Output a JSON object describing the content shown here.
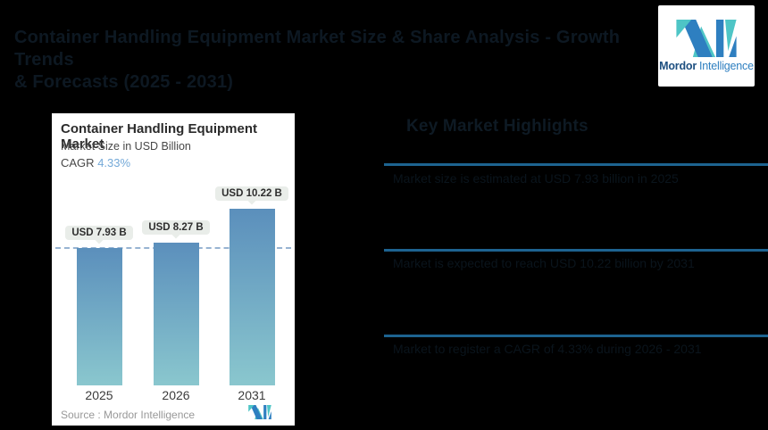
{
  "page": {
    "background_color": "#000000",
    "title_line1": "Container Handling Equipment Market Size & Share Analysis - Growth Trends",
    "title_line2": "& Forecasts (2025 - 2031)",
    "title_color": "#0d1822"
  },
  "brand": {
    "name_part1": "Mordor",
    "name_part2": "Intelligence",
    "teal": "#4ec5c6",
    "blue": "#2e7fc0",
    "dark_blue": "#1d4f80"
  },
  "chart_card": {
    "title": "Container Handling Equipment Market",
    "subtitle": "Market Size in USD Billion",
    "cagr_label": "CAGR",
    "cagr_value": "4.33%",
    "cagr_value_color": "#74a9d8",
    "source_text": "Source :  Mordor Intelligence"
  },
  "chart_data": {
    "type": "bar",
    "title": "Container Handling Equipment Market",
    "ylabel": "Market Size in USD Billion",
    "categories": [
      "2025",
      "2026",
      "2031"
    ],
    "values": [
      7.93,
      8.27,
      10.22
    ],
    "value_labels": [
      "USD 7.93 B",
      "USD 8.27 B",
      "USD 10.22 B"
    ],
    "cagr_pct": 4.33,
    "baseline": 0,
    "reference_line": {
      "value": 7.93,
      "style": "dashed",
      "color": "#97b3d2"
    },
    "bar_gradient_top": "#5b8fbc",
    "bar_gradient_bottom": "#8ac7ce",
    "grid": false,
    "legend": "none"
  },
  "right_panel": {
    "heading": "Key Market Highlights",
    "heading_color": "#0e1a24",
    "divider_color": "#1d6390",
    "text_color": "#0a141c",
    "sections": [
      {
        "text": "Market size is estimated at USD 7.93 billion in 2025"
      },
      {
        "text": "Market is expected to reach USD 10.22 billion by 2031"
      },
      {
        "text": "Market to register a CAGR of 4.33% during 2026 - 2031"
      }
    ]
  }
}
